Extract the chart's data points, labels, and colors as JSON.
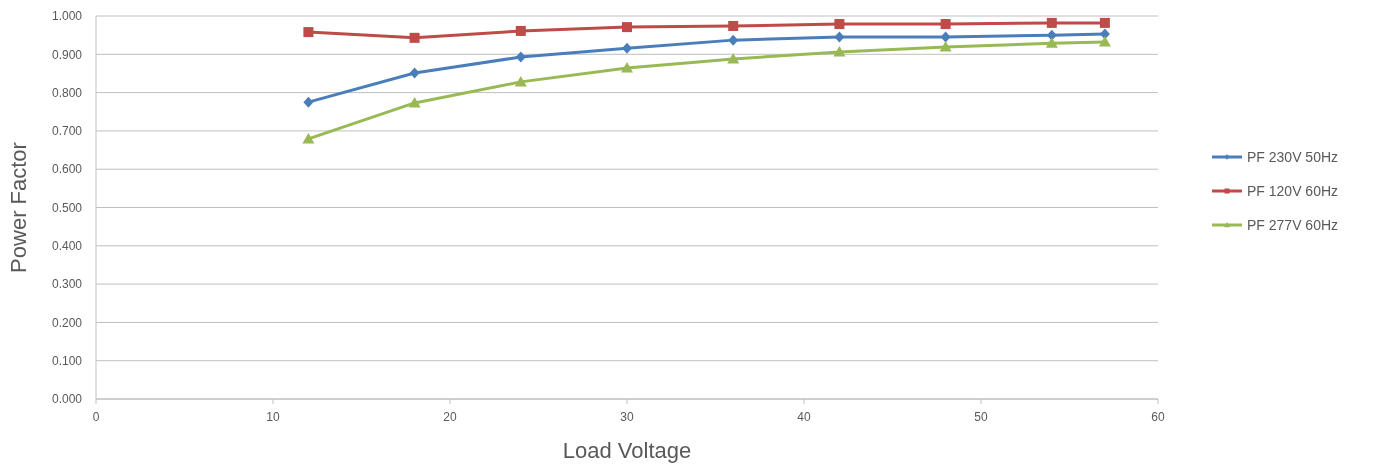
{
  "chart_data": {
    "type": "line",
    "xlabel": "Load Voltage",
    "ylabel": "Power Factor",
    "xlim": [
      0,
      60
    ],
    "xticks": [
      0,
      10,
      20,
      30,
      40,
      50,
      60
    ],
    "ylim": [
      0,
      1
    ],
    "yticks": [
      {
        "value": 0,
        "label": "0.000"
      },
      {
        "value": 0.1,
        "label": "0.100"
      },
      {
        "value": 0.2,
        "label": "0.200"
      },
      {
        "value": 0.3,
        "label": "0.300"
      },
      {
        "value": 0.4,
        "label": "0.400"
      },
      {
        "value": 0.5,
        "label": "0.500"
      },
      {
        "value": 0.6,
        "label": "0.600"
      },
      {
        "value": 0.7,
        "label": "0.700"
      },
      {
        "value": 0.8,
        "label": "0.800"
      },
      {
        "value": 0.9,
        "label": "0.900"
      },
      {
        "value": 1,
        "label": "1.000"
      }
    ],
    "x": [
      12,
      18,
      24,
      30,
      36,
      42,
      48,
      54,
      57
    ],
    "grid": "y",
    "legend": "right",
    "series": [
      {
        "name": "PF 230V 50Hz",
        "color": "#4a7ebb",
        "marker": "diamond",
        "values": [
          0.775,
          0.851,
          0.893,
          0.916,
          0.937,
          0.945,
          0.945,
          0.95,
          0.953
        ]
      },
      {
        "name": "PF 120V 60Hz",
        "color": "#be4b48",
        "marker": "square",
        "values": [
          0.958,
          0.943,
          0.961,
          0.971,
          0.974,
          0.979,
          0.979,
          0.982,
          0.982
        ]
      },
      {
        "name": "PF 277V 60Hz",
        "color": "#98b954",
        "marker": "triangle",
        "values": [
          0.679,
          0.773,
          0.828,
          0.864,
          0.888,
          0.906,
          0.919,
          0.929,
          0.932
        ]
      }
    ]
  }
}
